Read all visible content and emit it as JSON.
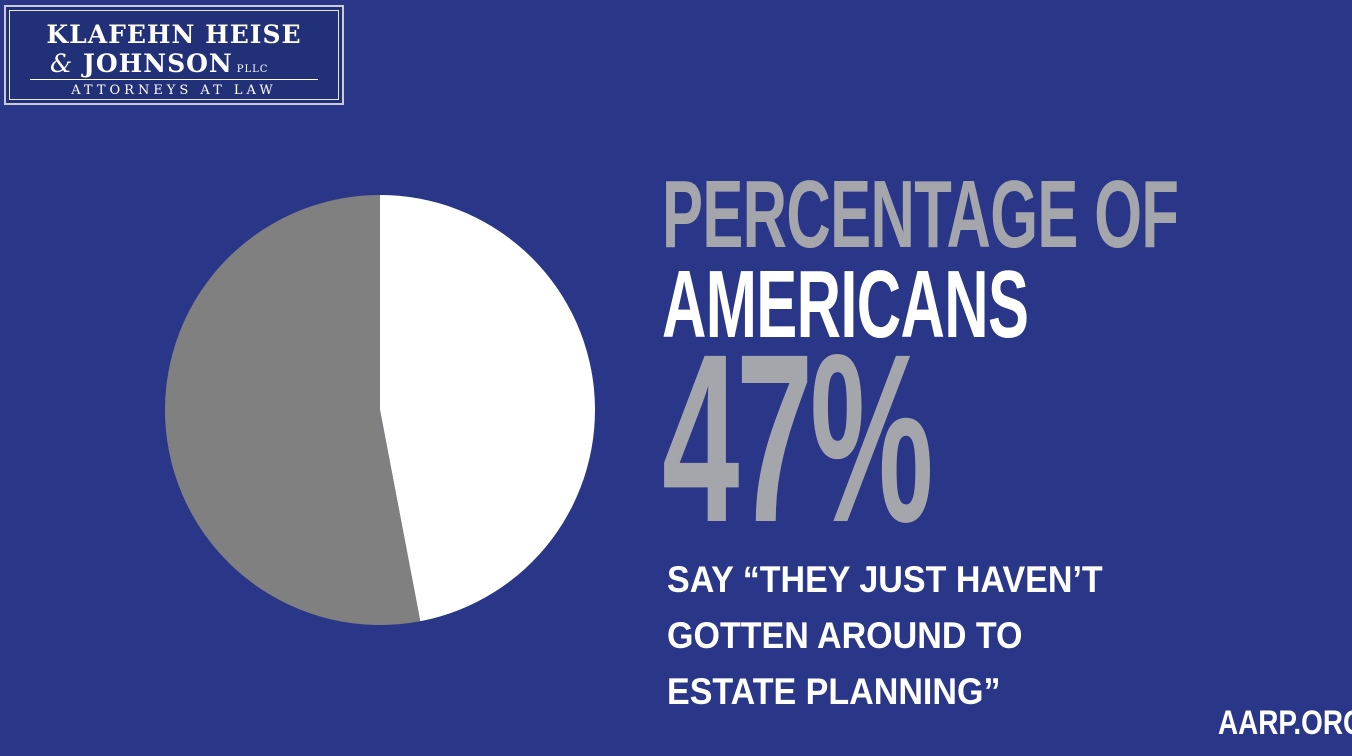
{
  "logo": {
    "line1": "KLAFEHN HEISE",
    "amp": "&",
    "line2": "JOHNSON",
    "suffix": "PLLC",
    "line3": "ATTORNEYS AT LAW"
  },
  "headline": {
    "line1": "PERCENTAGE OF",
    "line2": "AMERICANS",
    "stat": "47%",
    "quote_lines": [
      "SAY “THEY JUST HAVEN’T",
      "GOTTEN AROUND TO",
      "ESTATE PLANNING”"
    ]
  },
  "source": "AARP.ORG",
  "chart_data": {
    "type": "pie",
    "slices": [
      {
        "value": 47,
        "color": "#ffffff"
      },
      {
        "value": 53,
        "color": "#808080"
      }
    ]
  },
  "colors": {
    "background": "#2a3788",
    "accent_gray": "#a4a6ac",
    "text_white": "#ffffff"
  }
}
